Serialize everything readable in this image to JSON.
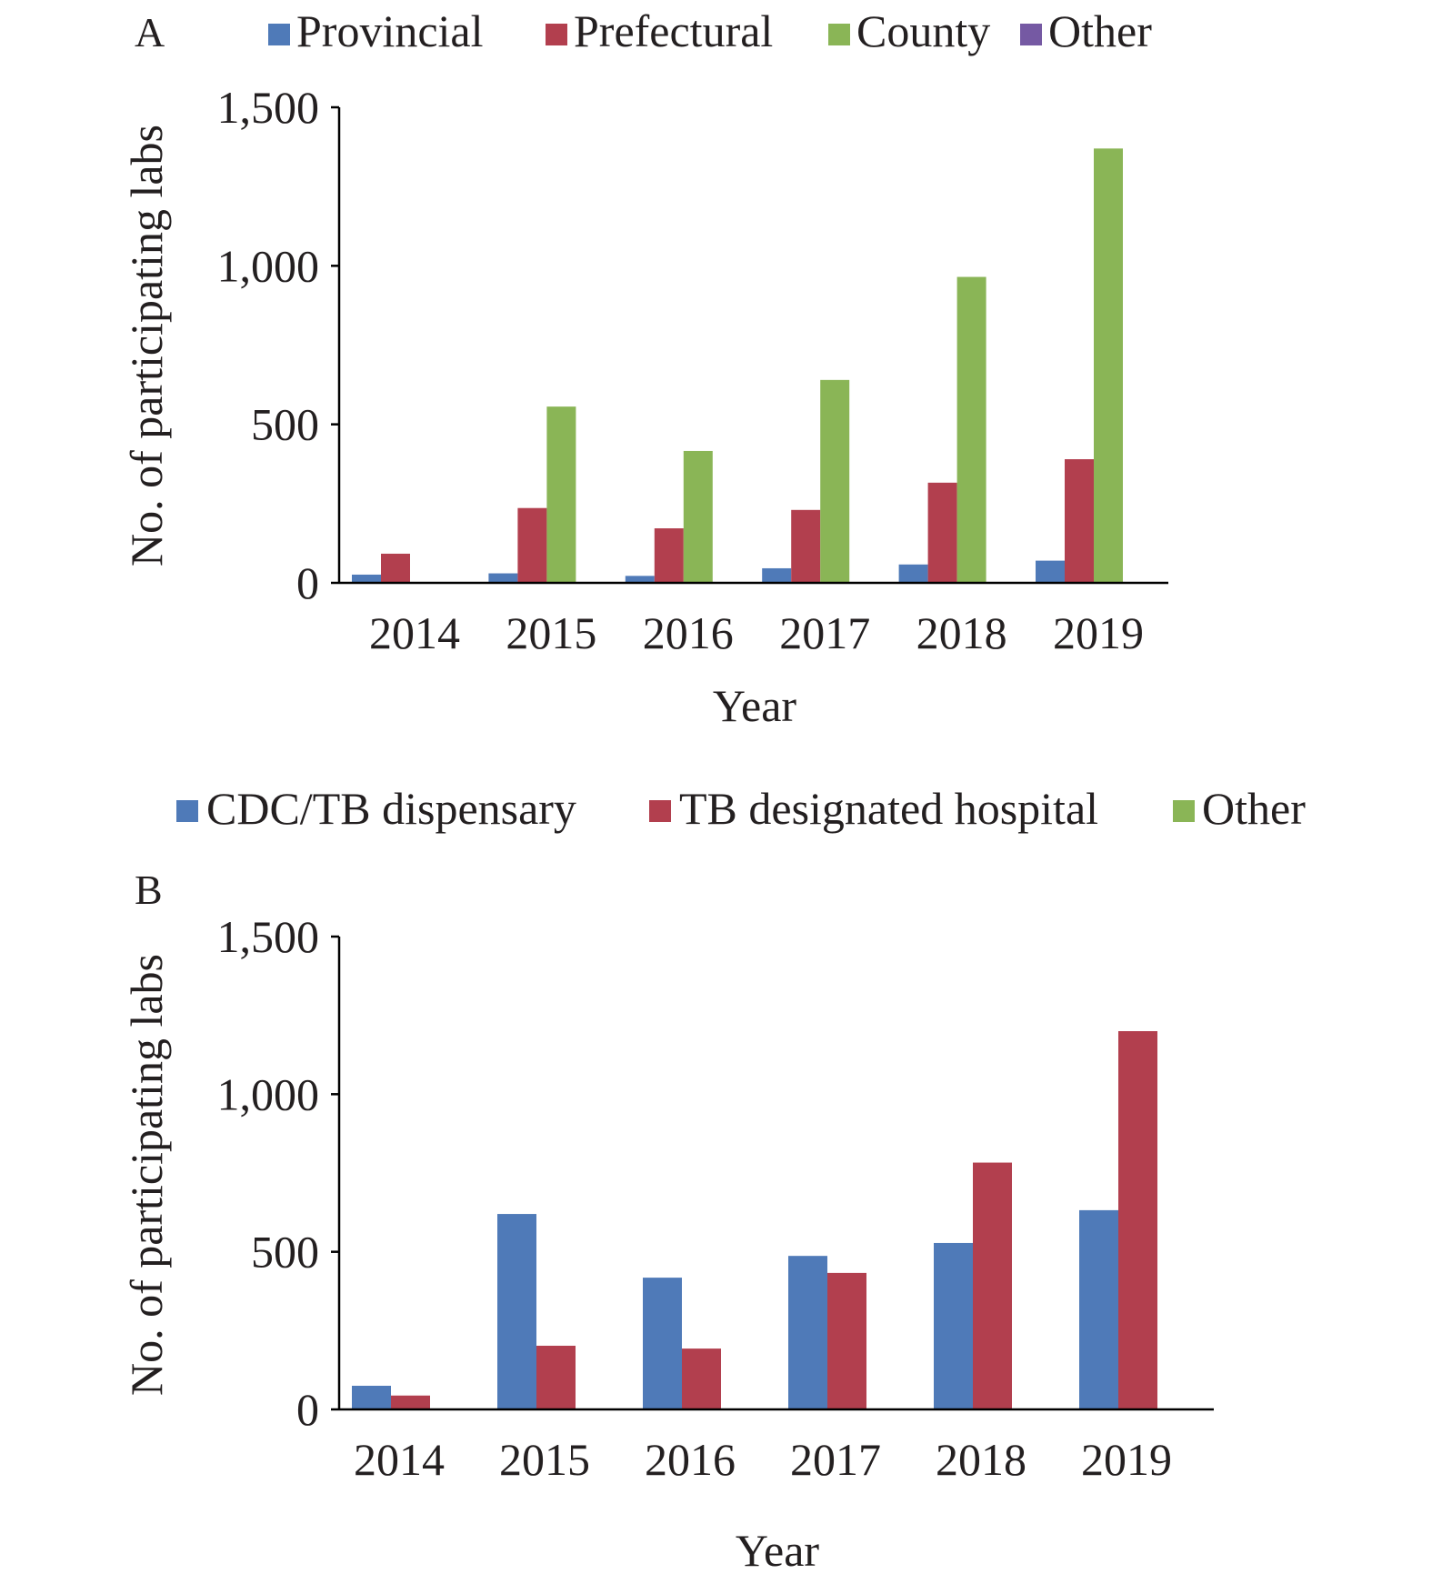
{
  "colors": {
    "blue": "#4f7ab8",
    "red": "#b23f4e",
    "green": "#8ab556",
    "purple": "#7559a3",
    "axis": "#000000",
    "text": "#231f20"
  },
  "chart_data": [
    {
      "type": "bar",
      "panel_label": "A",
      "categories": [
        "2014",
        "2015",
        "2016",
        "2017",
        "2018",
        "2019"
      ],
      "series": [
        {
          "name": "Provincial",
          "color": "#4f7ab8",
          "values": [
            26,
            30,
            22,
            46,
            58,
            70
          ]
        },
        {
          "name": "Prefectural",
          "color": "#b23f4e",
          "values": [
            92,
            236,
            172,
            230,
            316,
            390
          ]
        },
        {
          "name": "County",
          "color": "#8ab556",
          "values": [
            0,
            556,
            416,
            640,
            965,
            1370
          ]
        },
        {
          "name": "Other",
          "color": "#7559a3",
          "values": [
            0,
            0,
            0,
            0,
            0,
            0
          ]
        }
      ],
      "xlabel": "Year",
      "ylabel": "No. of participating labs",
      "ylim": [
        0,
        1500
      ],
      "yticks": [
        0,
        500,
        1000,
        1500
      ],
      "ytick_labels": [
        "0",
        "500",
        "1,000",
        "1,500"
      ],
      "legend_position": "top",
      "grid": false
    },
    {
      "type": "bar",
      "panel_label": "B",
      "categories": [
        "2014",
        "2015",
        "2016",
        "2017",
        "2018",
        "2019"
      ],
      "series": [
        {
          "name": "CDC/TB dispensary",
          "color": "#4f7ab8",
          "values": [
            75,
            620,
            418,
            487,
            528,
            632
          ]
        },
        {
          "name": "TB designated hospital",
          "color": "#b23f4e",
          "values": [
            44,
            202,
            193,
            433,
            783,
            1200
          ]
        },
        {
          "name": "Other",
          "color": "#8ab556",
          "values": [
            0,
            0,
            0,
            0,
            0,
            0
          ]
        }
      ],
      "xlabel": "Year",
      "ylabel": "No. of participating labs",
      "ylim": [
        0,
        1500
      ],
      "yticks": [
        0,
        500,
        1000,
        1500
      ],
      "ytick_labels": [
        "0",
        "500",
        "1,000",
        "1,500"
      ],
      "legend_position": "top",
      "grid": false
    }
  ]
}
